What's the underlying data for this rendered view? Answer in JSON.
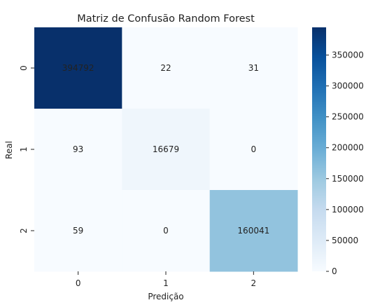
{
  "chart_data": {
    "type": "heatmap",
    "title": "Matriz de Confusão Random Forest",
    "xlabel": "Predição",
    "ylabel": "Real",
    "x_categories": [
      "0",
      "1",
      "2"
    ],
    "y_categories": [
      "0",
      "1",
      "2"
    ],
    "values": [
      [
        394792,
        22,
        31
      ],
      [
        93,
        16679,
        0
      ],
      [
        59,
        0,
        160041
      ]
    ],
    "cell_labels": [
      [
        "394792",
        "22",
        "31"
      ],
      [
        "93",
        "16679",
        "0"
      ],
      [
        "59",
        "0",
        "160041"
      ]
    ],
    "colormap": "Blues",
    "color_min": 0,
    "color_max": 394792,
    "colorbar_ticks": [
      0,
      50000,
      100000,
      150000,
      200000,
      250000,
      300000,
      350000
    ],
    "colorbar_tick_labels": [
      "0",
      "50000",
      "100000",
      "150000",
      "200000",
      "250000",
      "300000",
      "350000"
    ],
    "grid": false,
    "legend": "colorbar-right"
  }
}
